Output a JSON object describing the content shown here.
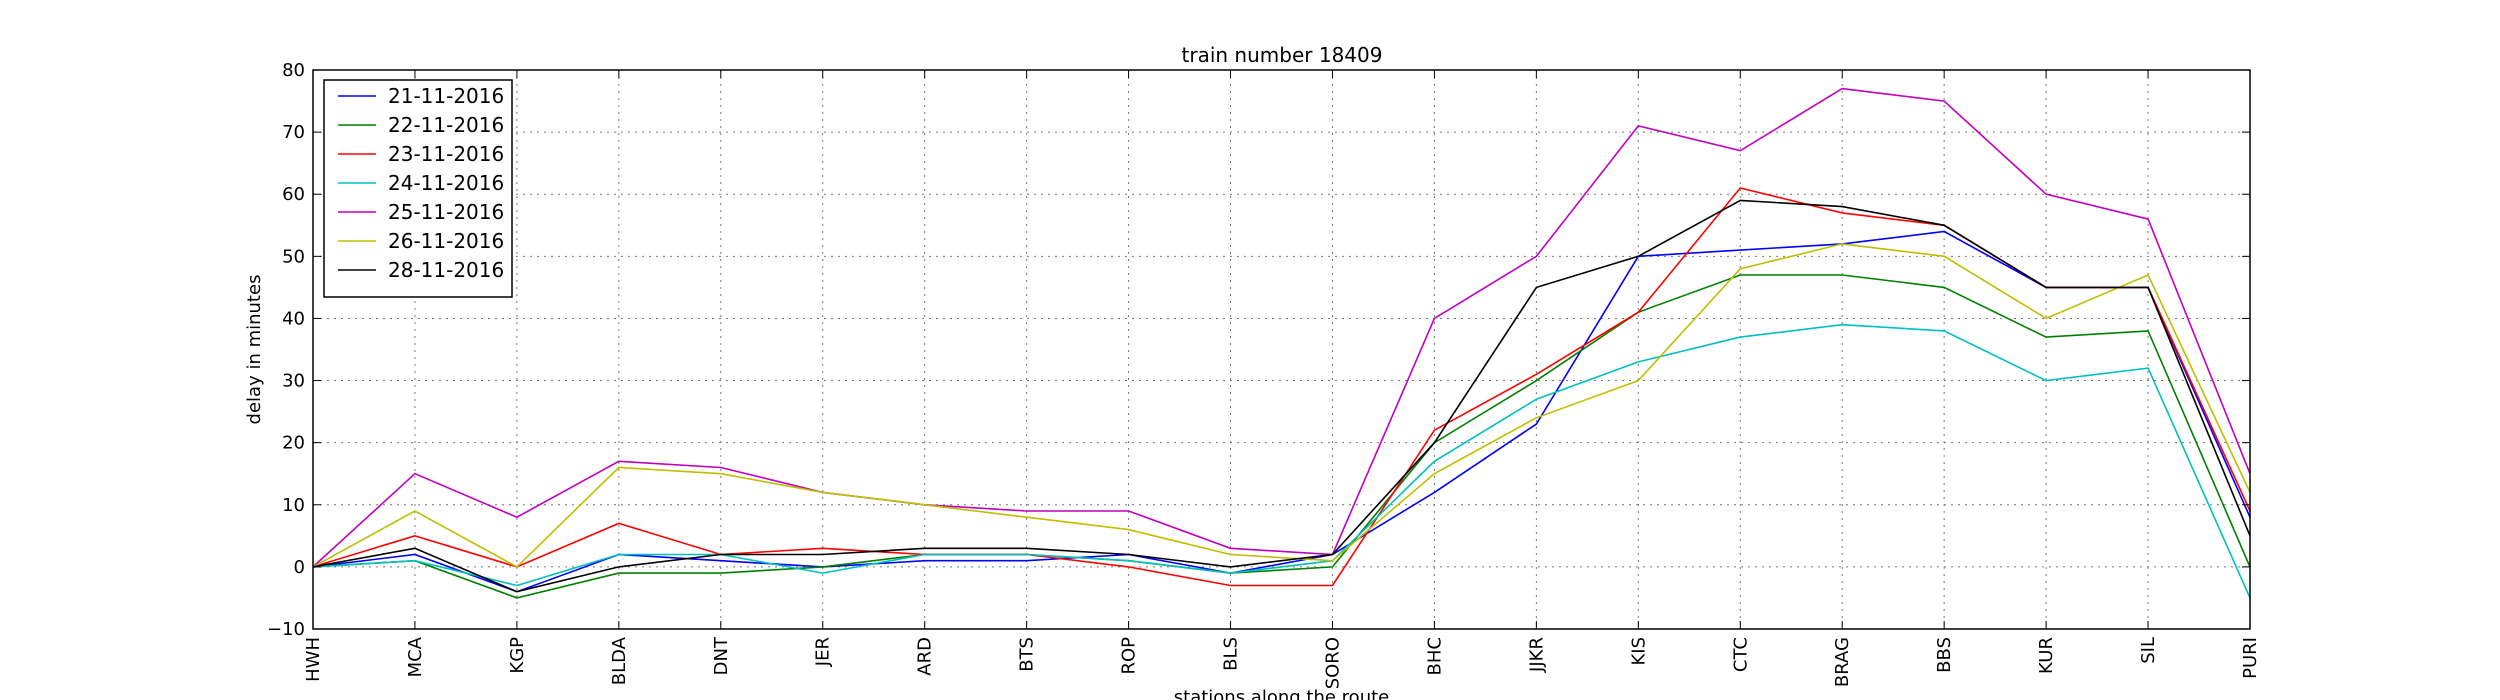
{
  "chart_data": {
    "type": "line",
    "title": "train number 18409",
    "xlabel": "stations along the route",
    "ylabel": "delay in minutes",
    "categories": [
      "HWH",
      "MCA",
      "KGP",
      "BLDA",
      "DNT",
      "JER",
      "ARD",
      "BTS",
      "ROP",
      "BLS",
      "SORO",
      "BHC",
      "JJKR",
      "KIS",
      "CTC",
      "BRAG",
      "BBS",
      "KUR",
      "SIL",
      "PURI"
    ],
    "ylim": [
      -10,
      80
    ],
    "yticks": [
      -10,
      0,
      10,
      20,
      30,
      40,
      50,
      60,
      70,
      80
    ],
    "grid": true,
    "legend_position": "top-left",
    "series": [
      {
        "name": "21-11-2016",
        "color": "#0000ff",
        "values": [
          0,
          2,
          -4,
          2,
          1,
          0,
          1,
          1,
          2,
          -1,
          2,
          12,
          23,
          50,
          51,
          52,
          54,
          45,
          45,
          8
        ]
      },
      {
        "name": "22-11-2016",
        "color": "#008000",
        "values": [
          0,
          1,
          -5,
          -1,
          -1,
          0,
          2,
          2,
          1,
          -1,
          0,
          20,
          30,
          41,
          47,
          47,
          45,
          37,
          38,
          0
        ]
      },
      {
        "name": "23-11-2016",
        "color": "#ff0000",
        "values": [
          0,
          5,
          0,
          7,
          2,
          3,
          2,
          2,
          0,
          -3,
          -3,
          22,
          31,
          41,
          61,
          57,
          55,
          45,
          45,
          9
        ]
      },
      {
        "name": "24-11-2016",
        "color": "#00bfbf",
        "values": [
          0,
          1,
          -3,
          2,
          2,
          -1,
          2,
          2,
          1,
          -1,
          1,
          17,
          27,
          33,
          37,
          39,
          38,
          30,
          32,
          -5
        ]
      },
      {
        "name": "25-11-2016",
        "color": "#bf00bf",
        "values": [
          0,
          15,
          8,
          17,
          16,
          12,
          10,
          9,
          9,
          3,
          2,
          40,
          50,
          71,
          67,
          77,
          75,
          60,
          56,
          15
        ]
      },
      {
        "name": "26-11-2016",
        "color": "#bfbf00",
        "values": [
          0,
          9,
          0,
          16,
          15,
          12,
          10,
          8,
          6,
          2,
          1,
          15,
          24,
          30,
          48,
          52,
          50,
          40,
          47,
          12
        ]
      },
      {
        "name": "28-11-2016",
        "color": "#000000",
        "values": [
          0,
          3,
          -4,
          0,
          2,
          2,
          3,
          3,
          2,
          0,
          2,
          20,
          45,
          50,
          59,
          58,
          55,
          45,
          45,
          5
        ]
      }
    ]
  }
}
